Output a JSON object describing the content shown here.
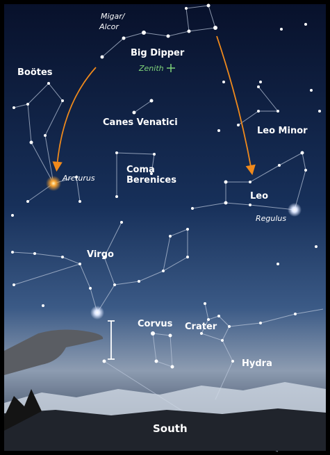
{
  "labels": {
    "mizar": [
      "Migar/",
      "Alcor"
    ],
    "big_dipper": "Big Dipper",
    "zenith": "Zenith",
    "bootes": "Boötes",
    "canes_venatici": "Canes Venatici",
    "leo_minor": "Leo Minor",
    "arcturus": "Arcturus",
    "coma_berenices": [
      "Coma",
      "Berenices"
    ],
    "leo": "Leo",
    "regulus": "Regulus",
    "virgo": "Virgo",
    "corvus": "Corvus",
    "crater": "Crater",
    "hydra": "Hydra",
    "south": "South"
  }
}
